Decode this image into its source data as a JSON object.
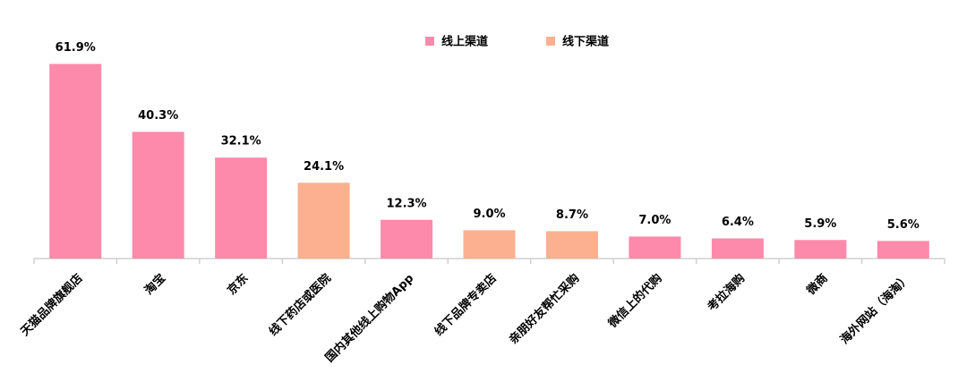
{
  "chart_data": {
    "type": "bar",
    "categories": [
      "天猫品牌旗舰店",
      "淘宝",
      "京东",
      "线下药店或医院",
      "国内其他线上购物App",
      "线下品牌专卖店",
      "亲朋好友帮忙采购",
      "微信上的代购",
      "考拉海购",
      "微商",
      "海外网站（海淘）"
    ],
    "series": [
      {
        "name": "线上渠道",
        "color": "#fe8aab",
        "values": [
          61.9,
          40.3,
          32.1,
          null,
          12.3,
          null,
          null,
          7.0,
          6.4,
          5.9,
          5.6
        ],
        "value_labels": [
          "61.9%",
          "40.3%",
          "32.1%",
          null,
          "12.3%",
          null,
          null,
          "7.0%",
          "6.4%",
          "5.9%",
          "5.6%"
        ]
      },
      {
        "name": "线下渠道",
        "color": "#fcb090",
        "values": [
          null,
          null,
          null,
          24.1,
          null,
          9.0,
          8.7,
          null,
          null,
          null,
          null
        ],
        "value_labels": [
          null,
          null,
          null,
          "24.1%",
          null,
          "9.0%",
          "8.7%",
          null,
          null,
          null,
          null
        ]
      }
    ],
    "ylim": [
      0,
      70
    ]
  }
}
